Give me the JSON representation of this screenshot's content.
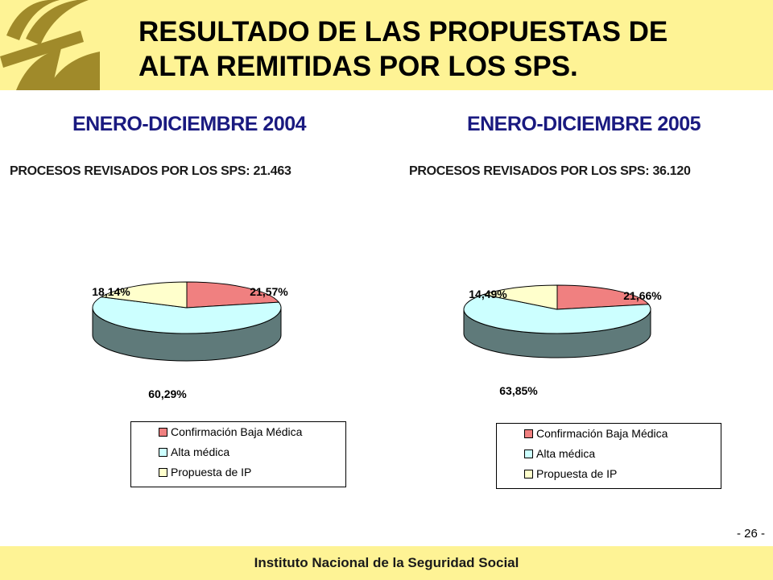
{
  "header": {
    "title_line1": "RESULTADO DE LAS PROPUESTAS DE",
    "title_line2": "ALTA REMITIDAS POR LOS SPS.",
    "logo_icon": "institutional-logo-icon",
    "band_color": "#fef395"
  },
  "footer": {
    "institution": "Instituto Nacional de la Seguridad Social",
    "page_number": "- 26 -"
  },
  "colors": {
    "confirmacion": "#f08080",
    "alta": "#ccffff",
    "propuesta": "#ffffcc",
    "pie_side": "#5f7a7a",
    "subtitle": "#1a1a80"
  },
  "chart_data": [
    {
      "type": "pie",
      "title": "ENERO-DICIEMBRE 2004",
      "subtitle": "PROCESOS REVISADOS POR LOS SPS: 21.463",
      "slices": [
        {
          "name": "Confirmación Baja Médica",
          "value": 21.57,
          "label": "21,57%"
        },
        {
          "name": "Alta médica",
          "value": 60.29,
          "label": "60,29%"
        },
        {
          "name": "Propuesta de IP",
          "value": 18.14,
          "label": "18,14%"
        }
      ],
      "legend": [
        "Confirmación Baja Médica",
        "Alta médica",
        "Propuesta de IP"
      ],
      "legend_position": "bottom"
    },
    {
      "type": "pie",
      "title": "ENERO-DICIEMBRE 2005",
      "subtitle": "PROCESOS REVISADOS POR LOS SPS: 36.120",
      "slices": [
        {
          "name": "Confirmación Baja Médica",
          "value": 21.66,
          "label": "21,66%"
        },
        {
          "name": "Alta médica",
          "value": 63.85,
          "label": "63,85%"
        },
        {
          "name": "Propuesta de IP",
          "value": 14.49,
          "label": "14,49%"
        }
      ],
      "legend": [
        "Confirmación Baja Médica",
        "Alta médica",
        "Propuesta de IP"
      ],
      "legend_position": "bottom"
    }
  ]
}
